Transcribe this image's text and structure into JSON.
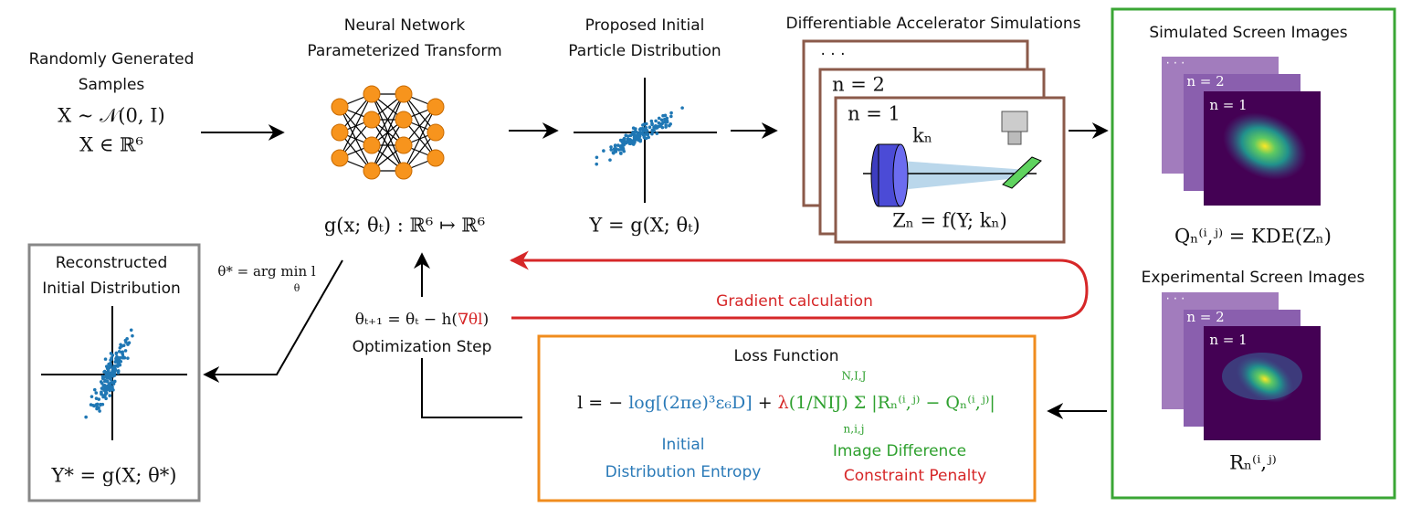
{
  "samples": {
    "title": [
      "Randomly Generated",
      "Samples"
    ],
    "distribution": "X ∼ 𝒩(0, I)",
    "domain": "X ∈ ℝ⁶"
  },
  "network": {
    "title": [
      "Neural Network",
      "Parameterized Transform"
    ],
    "formula": "g(x; θₜ) : ℝ⁶ ↦ ℝ⁶"
  },
  "proposed": {
    "title": [
      "Proposed Initial",
      "Particle Distribution"
    ],
    "formula": "Y = g(X; θₜ)"
  },
  "simulations": {
    "title": "Differentiable Accelerator Simulations",
    "frames": [
      "· · ·",
      "n = 2",
      "n = 1"
    ],
    "parameter": "kₙ",
    "formula": "Zₙ = f(Y; kₙ)"
  },
  "simulated_images": {
    "title": "Simulated Screen Images",
    "frames": [
      "· · ·",
      "n = 2",
      "n = 1"
    ],
    "formula": "Qₙ⁽ⁱ,ʲ⁾ = KDE(Zₙ)"
  },
  "experimental_images": {
    "title": "Experimental Screen Images",
    "frames": [
      "· · ·",
      "n = 2",
      "n = 1"
    ],
    "formula": "Rₙ⁽ⁱ,ʲ⁾"
  },
  "gradient": {
    "label": "Gradient calculation"
  },
  "optimization": {
    "update_start": "θₜ₊₁ = θₜ − h(",
    "update_grad": "∇θl",
    "update_end": ")",
    "label": "Optimization Step",
    "argmin": "θ* = arg min l",
    "argmin_sub": "θ"
  },
  "reconstructed": {
    "title": [
      "Reconstructed",
      "Initial Distribution"
    ],
    "formula": "Y* = g(X; θ*)"
  },
  "loss": {
    "title": "Loss Function",
    "lhs": "l = −",
    "entropy_term": "log[(2πe)³ε₆D]",
    "plus": " + ",
    "lambda": "λ",
    "difference_term": "(1/NIJ) Σ |Rₙ⁽ⁱ,ʲ⁾ − Qₙ⁽ⁱ,ʲ⁾|",
    "sum_limits_top": "N,I,J",
    "sum_limits_bottom": "n,i,j",
    "entropy_label": [
      "Initial",
      "Distribution Entropy"
    ],
    "difference_label": "Image Difference",
    "penalty_label": "Constraint Penalty"
  }
}
